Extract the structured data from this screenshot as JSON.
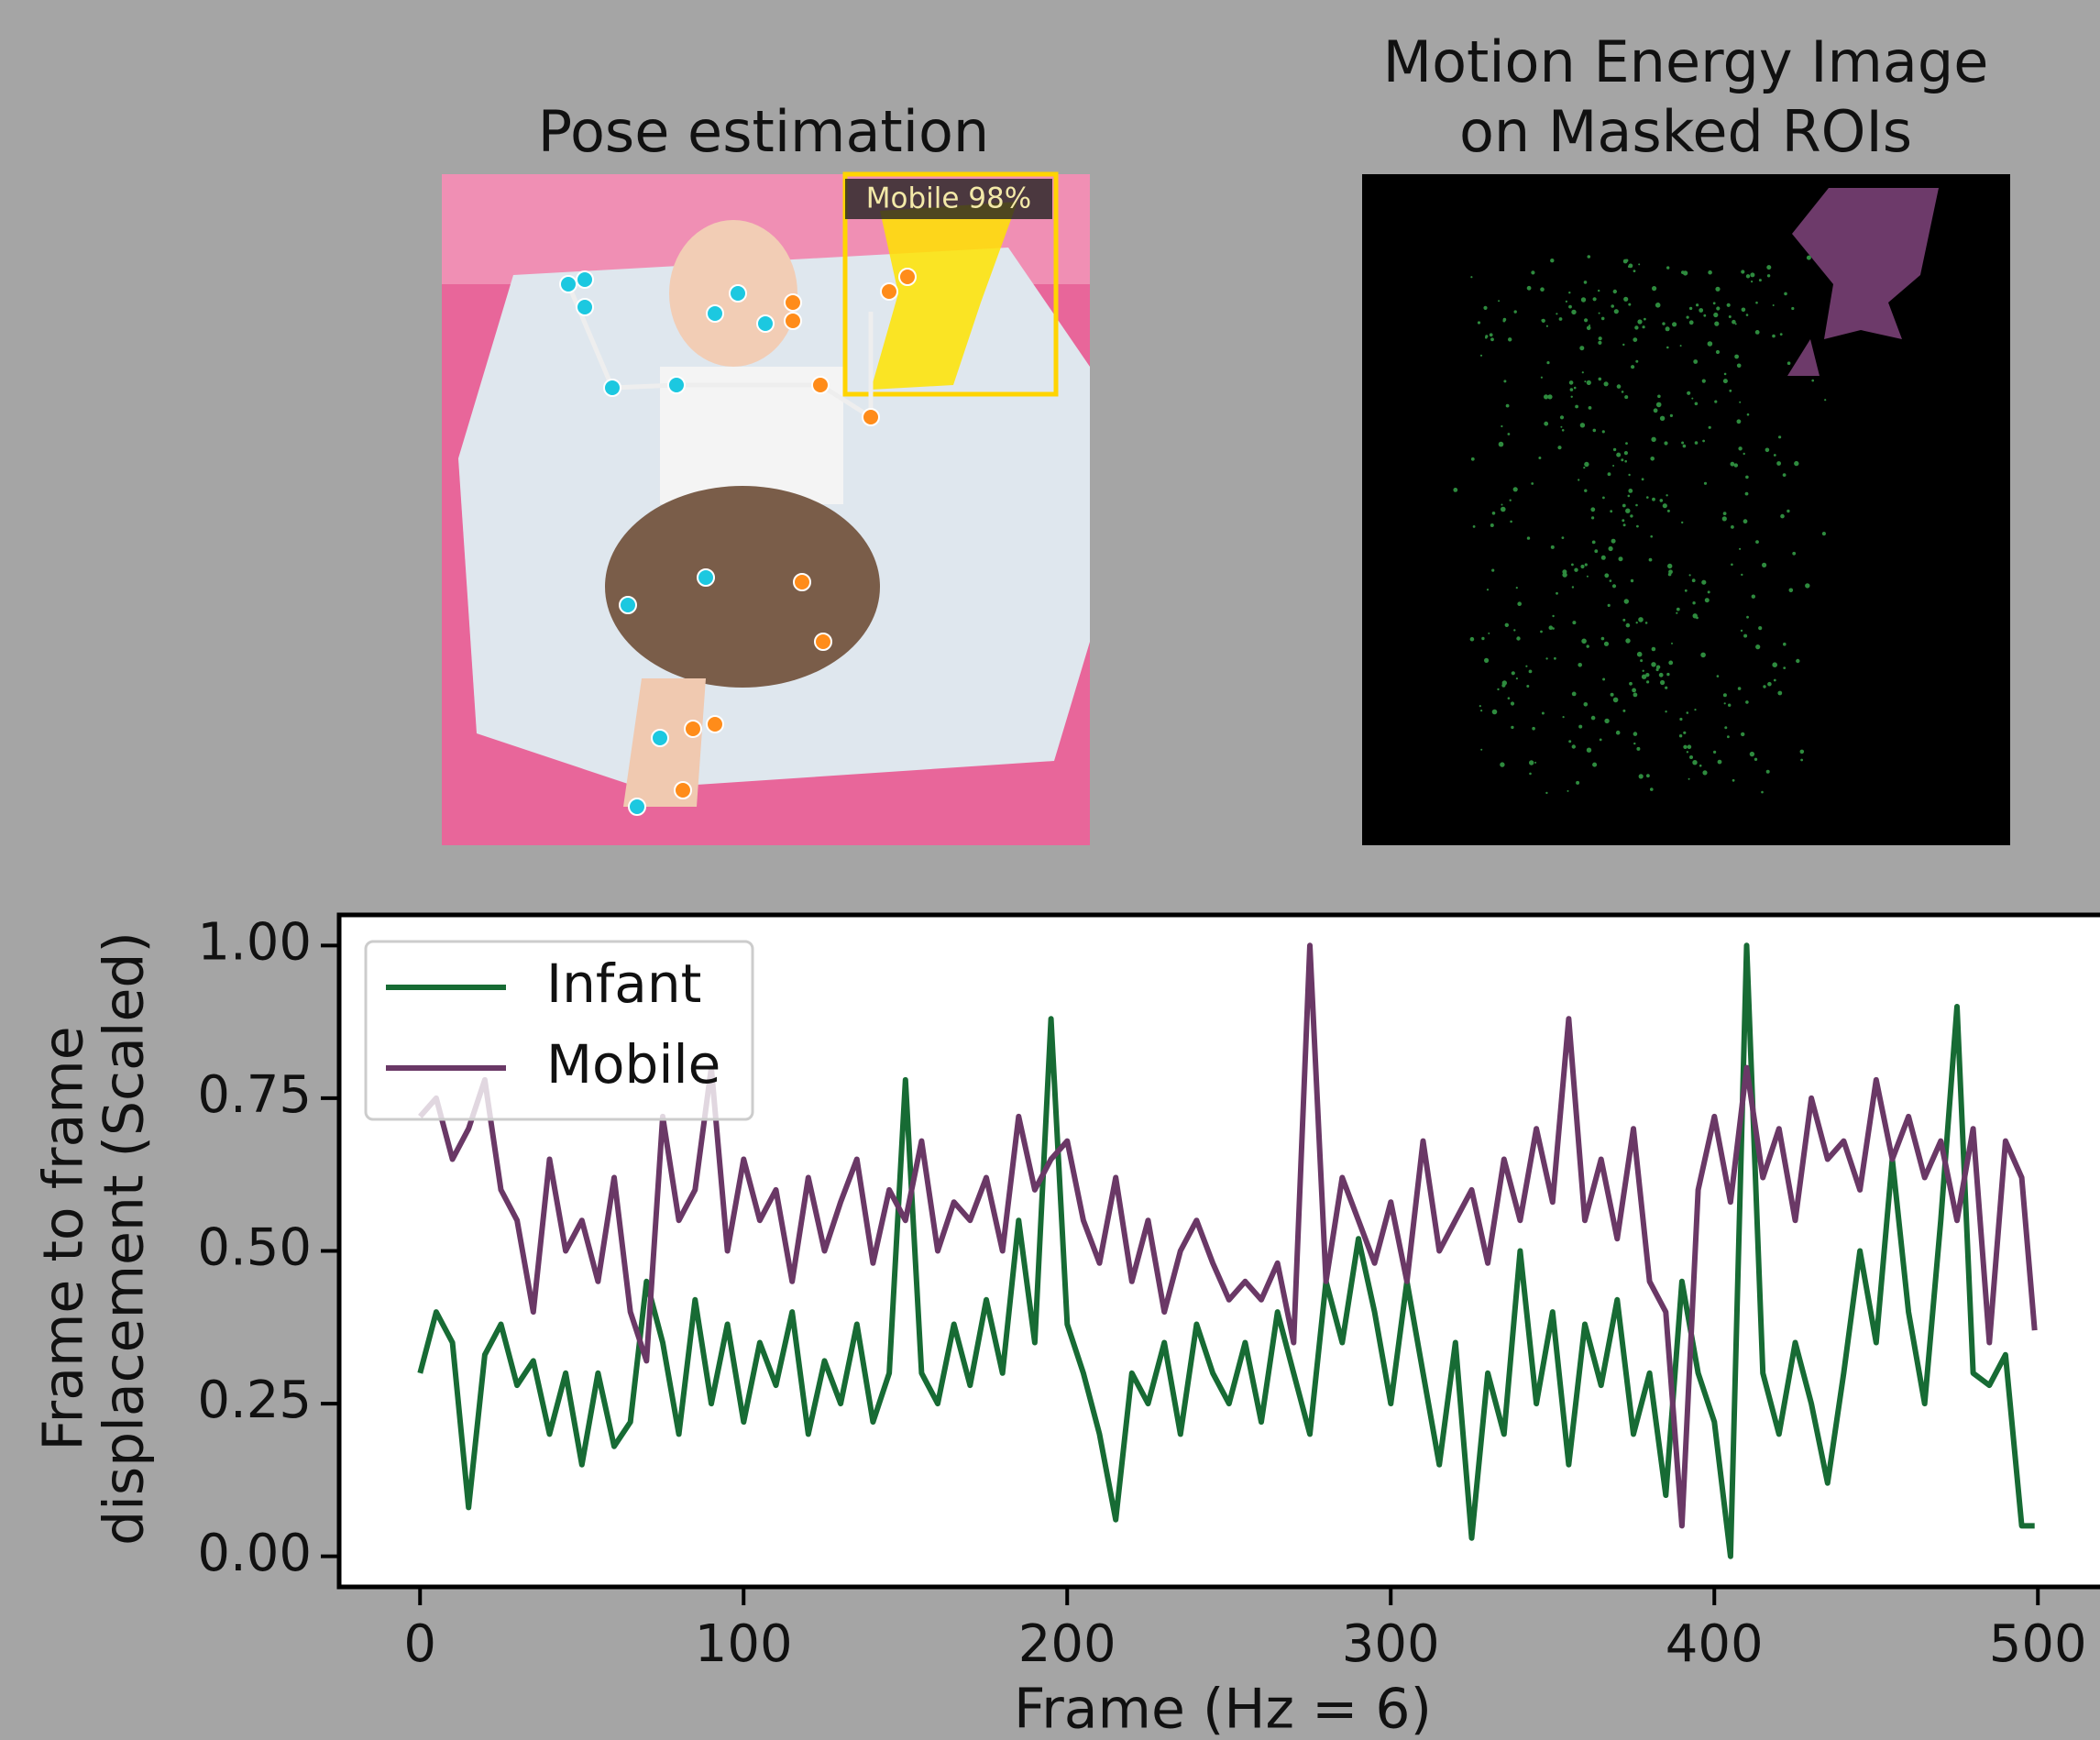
{
  "panels": [
    {
      "title": [
        "Pose estimation"
      ],
      "label": "Mobile 98%"
    },
    {
      "title": [
        "Motion Energy Image",
        "on Masked ROIs"
      ]
    }
  ],
  "chart_data": {
    "type": "line",
    "xlabel": "Frame (Hz = 6)",
    "ylabel": [
      "Frame to frame",
      "displacement (Scaled)"
    ],
    "x": [
      0,
      5,
      10,
      15,
      20,
      25,
      30,
      35,
      40,
      45,
      50,
      55,
      60,
      65,
      70,
      75,
      80,
      85,
      90,
      95,
      100,
      105,
      110,
      115,
      120,
      125,
      130,
      135,
      140,
      145,
      150,
      155,
      160,
      165,
      170,
      175,
      180,
      185,
      190,
      195,
      200,
      205,
      210,
      215,
      220,
      225,
      230,
      235,
      240,
      245,
      250,
      255,
      260,
      265,
      270,
      275,
      280,
      285,
      290,
      295,
      300,
      305,
      310,
      315,
      320,
      325,
      330,
      335,
      340,
      345,
      350,
      355,
      360,
      365,
      370,
      375,
      380,
      385,
      390,
      395,
      400,
      405,
      410,
      415,
      420,
      425,
      430,
      435,
      440,
      445,
      450,
      455,
      460,
      465,
      470,
      475,
      480,
      485,
      490,
      495,
      499
    ],
    "series": [
      {
        "name": "Infant",
        "color": "#176b34",
        "values": [
          0.3,
          0.4,
          0.35,
          0.08,
          0.33,
          0.38,
          0.28,
          0.32,
          0.2,
          0.3,
          0.15,
          0.3,
          0.18,
          0.22,
          0.45,
          0.35,
          0.2,
          0.42,
          0.25,
          0.38,
          0.22,
          0.35,
          0.28,
          0.4,
          0.2,
          0.32,
          0.25,
          0.38,
          0.22,
          0.3,
          0.78,
          0.3,
          0.25,
          0.38,
          0.28,
          0.42,
          0.3,
          0.55,
          0.35,
          0.88,
          0.38,
          0.3,
          0.2,
          0.06,
          0.3,
          0.25,
          0.35,
          0.2,
          0.38,
          0.3,
          0.25,
          0.35,
          0.22,
          0.4,
          0.3,
          0.2,
          0.45,
          0.35,
          0.52,
          0.4,
          0.25,
          0.45,
          0.3,
          0.15,
          0.35,
          0.03,
          0.3,
          0.2,
          0.5,
          0.25,
          0.4,
          0.15,
          0.38,
          0.28,
          0.42,
          0.2,
          0.3,
          0.1,
          0.45,
          0.3,
          0.22,
          0.0,
          1.0,
          0.3,
          0.2,
          0.35,
          0.25,
          0.12,
          0.3,
          0.5,
          0.35,
          0.65,
          0.4,
          0.25,
          0.55,
          0.9,
          0.3,
          0.28,
          0.33,
          0.05,
          0.05
        ]
      },
      {
        "name": "Mobile",
        "color": "#6a3866",
        "values": [
          0.72,
          0.75,
          0.65,
          0.7,
          0.78,
          0.6,
          0.55,
          0.4,
          0.65,
          0.5,
          0.55,
          0.45,
          0.62,
          0.4,
          0.32,
          0.72,
          0.55,
          0.6,
          0.8,
          0.5,
          0.65,
          0.55,
          0.6,
          0.45,
          0.62,
          0.5,
          0.58,
          0.65,
          0.48,
          0.6,
          0.55,
          0.68,
          0.5,
          0.58,
          0.55,
          0.62,
          0.5,
          0.72,
          0.6,
          0.65,
          0.68,
          0.55,
          0.48,
          0.62,
          0.45,
          0.55,
          0.4,
          0.5,
          0.55,
          0.48,
          0.42,
          0.45,
          0.42,
          0.48,
          0.35,
          1.0,
          0.45,
          0.62,
          0.55,
          0.48,
          0.58,
          0.45,
          0.68,
          0.5,
          0.55,
          0.6,
          0.48,
          0.65,
          0.55,
          0.7,
          0.58,
          0.88,
          0.55,
          0.65,
          0.52,
          0.7,
          0.45,
          0.4,
          0.05,
          0.6,
          0.72,
          0.58,
          0.8,
          0.62,
          0.7,
          0.55,
          0.75,
          0.65,
          0.68,
          0.6,
          0.78,
          0.65,
          0.72,
          0.62,
          0.68,
          0.55,
          0.7,
          0.35,
          0.68,
          0.62,
          0.37
        ]
      }
    ],
    "xlim": [
      -25,
      525
    ],
    "xticks": [
      0,
      100,
      200,
      300,
      400,
      500
    ],
    "ylim": [
      -0.05,
      1.05
    ],
    "yticks": [
      {
        "value": 0,
        "label": "0.00"
      },
      {
        "value": 0.25,
        "label": "0.25"
      },
      {
        "value": 0.5,
        "label": "0.50"
      },
      {
        "value": 0.75,
        "label": "0.75"
      },
      {
        "value": 1,
        "label": "1.00"
      }
    ],
    "legend": "upper left"
  }
}
